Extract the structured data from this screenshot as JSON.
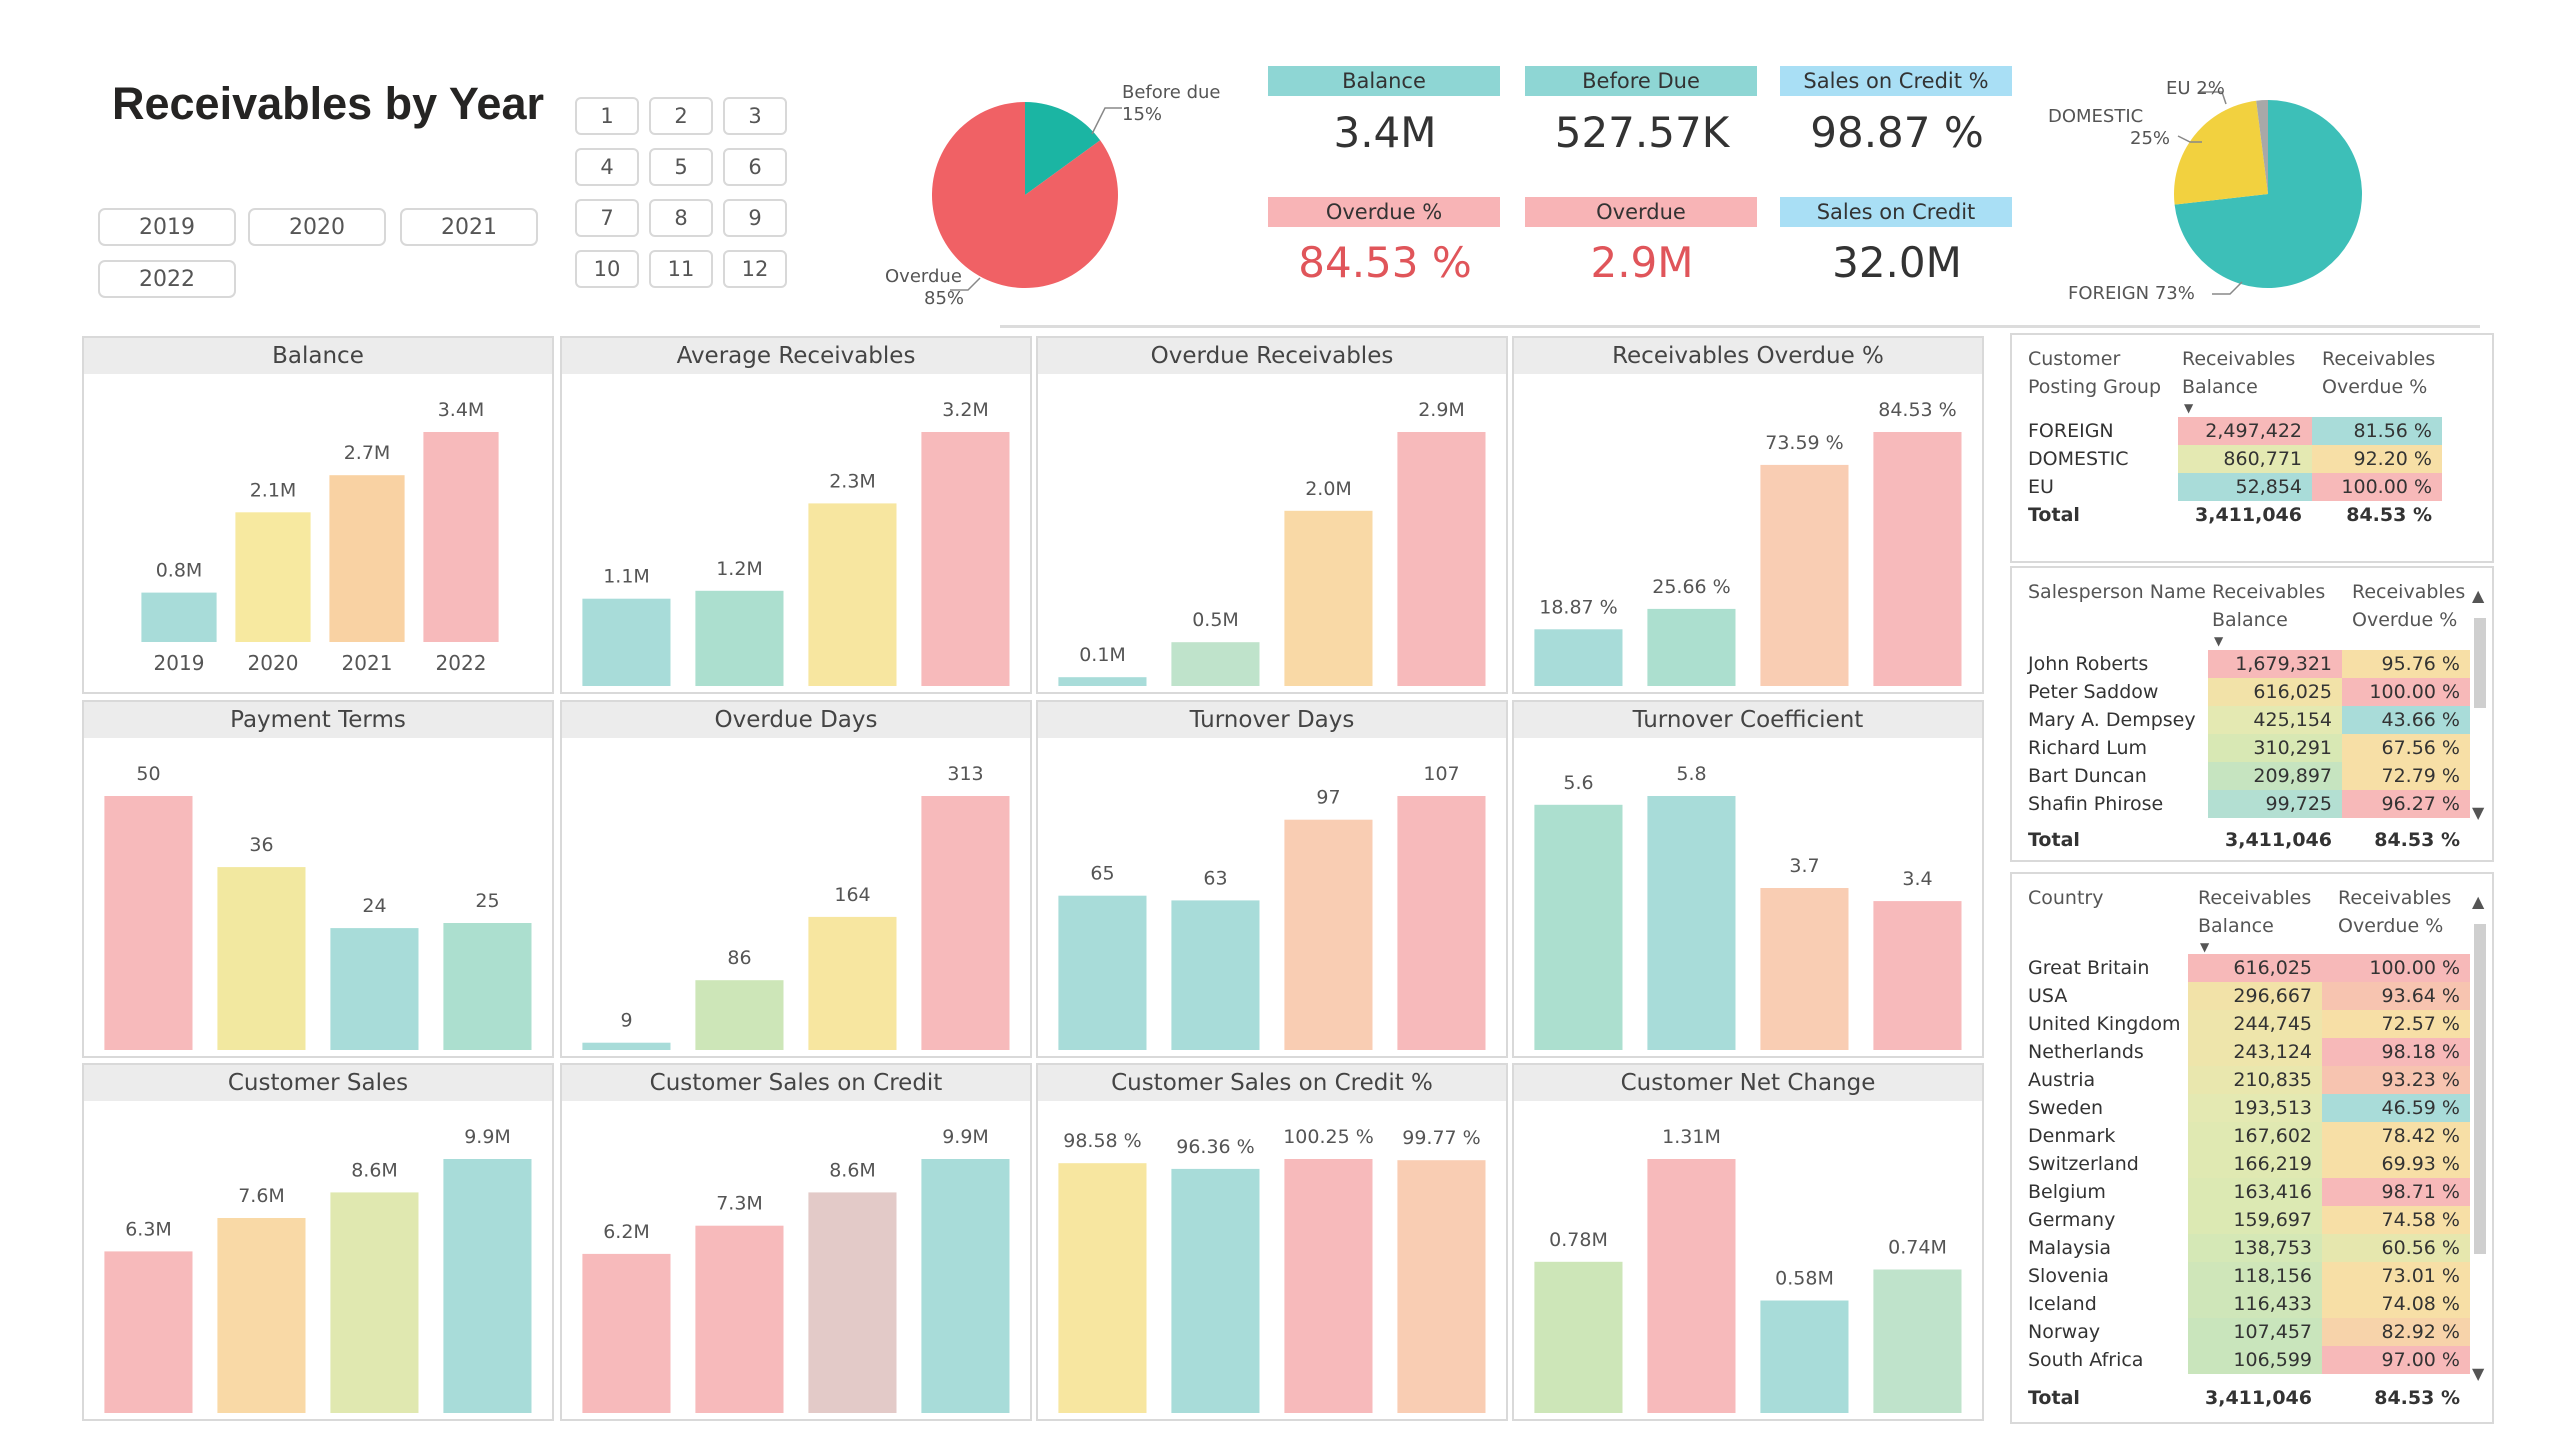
{
  "header": {
    "title": "Receivables by Year",
    "years": [
      "2019",
      "2020",
      "2021",
      "2022"
    ],
    "months": [
      "1",
      "2",
      "3",
      "4",
      "5",
      "6",
      "7",
      "8",
      "9",
      "10",
      "11",
      "12"
    ]
  },
  "due_pie": {
    "before_label": "Before due",
    "before_pct": "15%",
    "overdue_label": "Overdue",
    "overdue_pct": "85%",
    "values": [
      15,
      85
    ],
    "colors": [
      "#1bb5a3",
      "#f06165"
    ]
  },
  "kpis": {
    "balance_label": "Balance",
    "balance_value": "3.4M",
    "before_due_label": "Before Due",
    "before_due_value": "527.57K",
    "sales_credit_pct_label": "Sales on Credit %",
    "sales_credit_pct_value": "98.87 %",
    "overdue_pct_label": "Overdue %",
    "overdue_pct_value": "84.53 %",
    "overdue_label": "Overdue",
    "overdue_value": "2.9M",
    "sales_credit_label": "Sales on Credit",
    "sales_credit_value": "32.0M",
    "colors": {
      "teal": "#8ed6d4",
      "pink": "#f8b4b6",
      "blue": "#a9dff5"
    }
  },
  "group_pie": {
    "eu_label": "EU 2%",
    "domestic_label": "DOMESTIC",
    "domestic_pct": "25%",
    "foreign_label": "FOREIGN 73%",
    "values": [
      73,
      25,
      2
    ],
    "colors": [
      "#3dbfb8",
      "#f2d13f",
      "#a8a8a8"
    ]
  },
  "charts": [
    {
      "title": "Balance",
      "categories": [
        "2019",
        "2020",
        "2021",
        "2022"
      ],
      "values": [
        0.8,
        2.1,
        2.7,
        3.4
      ],
      "labels": [
        "0.8M",
        "2.1M",
        "2.7M",
        "3.4M"
      ],
      "colors": [
        "#a8dcd9",
        "#f7e9a0",
        "#f9d2a3",
        "#f7babb"
      ],
      "show_x": true
    },
    {
      "title": "Average Receivables",
      "values": [
        1.1,
        1.2,
        2.3,
        3.2
      ],
      "labels": [
        "1.1M",
        "1.2M",
        "2.3M",
        "3.2M"
      ],
      "colors": [
        "#a8dcd9",
        "#acdfcf",
        "#f7e6a0",
        "#f7babb"
      ],
      "show_x": false
    },
    {
      "title": "Overdue Receivables",
      "values": [
        0.1,
        0.5,
        2.0,
        2.9
      ],
      "labels": [
        "0.1M",
        "0.5M",
        "2.0M",
        "2.9M"
      ],
      "colors": [
        "#a8dcd9",
        "#bfe3cb",
        "#f9d9a6",
        "#f7babb"
      ],
      "show_x": false
    },
    {
      "title": "Receivables Overdue %",
      "values": [
        18.87,
        25.66,
        73.59,
        84.53
      ],
      "labels": [
        "18.87 %",
        "25.66 %",
        "73.59 %",
        "84.53 %"
      ],
      "colors": [
        "#a8dcd9",
        "#acdfcf",
        "#f9cdb3",
        "#f7babb"
      ],
      "show_x": false
    },
    {
      "title": "Payment Terms",
      "values": [
        50,
        36,
        24,
        25
      ],
      "labels": [
        "50",
        "36",
        "24",
        "25"
      ],
      "colors": [
        "#f7babb",
        "#f2e8a0",
        "#a8dcd9",
        "#acdfcf"
      ],
      "show_x": false
    },
    {
      "title": "Overdue Days",
      "values": [
        9,
        86,
        164,
        313
      ],
      "labels": [
        "9",
        "86",
        "164",
        "313"
      ],
      "colors": [
        "#a8dcd9",
        "#cde6b8",
        "#f7e6a0",
        "#f7babb"
      ],
      "show_x": false
    },
    {
      "title": "Turnover Days",
      "values": [
        65,
        63,
        97,
        107
      ],
      "labels": [
        "65",
        "63",
        "97",
        "107"
      ],
      "colors": [
        "#a8dcd9",
        "#a8dcd9",
        "#f9cdb3",
        "#f7babb"
      ],
      "show_x": false
    },
    {
      "title": "Turnover Coefficient",
      "values": [
        5.6,
        5.8,
        3.7,
        3.4
      ],
      "labels": [
        "5.6",
        "5.8",
        "3.7",
        "3.4"
      ],
      "colors": [
        "#acdfcf",
        "#a8dcd9",
        "#f9cdb3",
        "#f7babb"
      ],
      "show_x": false
    },
    {
      "title": "Customer Sales",
      "values": [
        6.3,
        7.6,
        8.6,
        9.9
      ],
      "labels": [
        "6.3M",
        "7.6M",
        "8.6M",
        "9.9M"
      ],
      "colors": [
        "#f7babb",
        "#f9d9a6",
        "#e0e8b0",
        "#a8dcd9"
      ],
      "show_x": false
    },
    {
      "title": "Customer Sales on Credit",
      "values": [
        6.2,
        7.3,
        8.6,
        9.9
      ],
      "labels": [
        "6.2M",
        "7.3M",
        "8.6M",
        "9.9M"
      ],
      "colors": [
        "#f7babb",
        "#f7babb",
        "#e3cac8",
        "#a8dcd9"
      ],
      "show_x": false
    },
    {
      "title": "Customer Sales on Credit %",
      "values": [
        98.58,
        96.36,
        100.25,
        99.77
      ],
      "labels": [
        "98.58 %",
        "96.36 %",
        "100.25 %",
        "99.77 %"
      ],
      "colors": [
        "#f7e6a0",
        "#a8dcd9",
        "#f7babb",
        "#f9cdb3"
      ],
      "show_x": false
    },
    {
      "title": "Customer Net Change",
      "values": [
        0.78,
        1.31,
        0.58,
        0.74
      ],
      "labels": [
        "0.78M",
        "1.31M",
        "0.58M",
        "0.74M"
      ],
      "colors": [
        "#cde6b8",
        "#f7babb",
        "#a8dcd9",
        "#bfe3cb"
      ],
      "show_x": false
    }
  ],
  "table_group": {
    "headers": [
      "Customer Posting Group",
      "Receivables Balance",
      "Receivables Overdue %"
    ],
    "rows": [
      {
        "name": "FOREIGN",
        "balance": "2,497,422",
        "overdue": "81.56 %",
        "bal_color": "#f7b9b9",
        "ov_color": "#a9dcd9"
      },
      {
        "name": "DOMESTIC",
        "balance": "860,771",
        "overdue": "92.20 %",
        "bal_color": "#e4e9b2",
        "ov_color": "#f7dfa6"
      },
      {
        "name": "EU",
        "balance": "52,854",
        "overdue": "100.00 %",
        "bal_color": "#a9dcd9",
        "ov_color": "#f7b9b9"
      }
    ],
    "total_label": "Total",
    "total_balance": "3,411,046",
    "total_overdue": "84.53 %"
  },
  "table_sales": {
    "headers": [
      "Salesperson Name",
      "Receivables Balance",
      "Receivables Overdue %"
    ],
    "rows": [
      {
        "name": "John Roberts",
        "balance": "1,679,321",
        "overdue": "95.76 %",
        "bal_color": "#f7b9b9",
        "ov_color": "#f7dfa6"
      },
      {
        "name": "Peter Saddow",
        "balance": "616,025",
        "overdue": "100.00 %",
        "bal_color": "#f2e2a8",
        "ov_color": "#f7b9b9"
      },
      {
        "name": "Mary A. Dempsey",
        "balance": "425,154",
        "overdue": "43.66 %",
        "bal_color": "#e4e9b2",
        "ov_color": "#a9dcd9"
      },
      {
        "name": "Richard Lum",
        "balance": "310,291",
        "overdue": "67.56 %",
        "bal_color": "#d8e8b4",
        "ov_color": "#f7dfa6"
      },
      {
        "name": "Bart Duncan",
        "balance": "209,897",
        "overdue": "72.79 %",
        "bal_color": "#c6e4c0",
        "ov_color": "#f7dfa6"
      },
      {
        "name": "Shafin Phirose",
        "balance": "99,725",
        "overdue": "96.27 %",
        "bal_color": "#b3dfd2",
        "ov_color": "#f7b9b9"
      }
    ],
    "total_label": "Total",
    "total_balance": "3,411,046",
    "total_overdue": "84.53 %"
  },
  "table_country": {
    "headers": [
      "Country",
      "Receivables Balance",
      "Receivables Overdue %"
    ],
    "rows": [
      {
        "name": "Great Britain",
        "balance": "616,025",
        "overdue": "100.00 %",
        "bal_color": "#f7b9b9",
        "ov_color": "#f7b9b9"
      },
      {
        "name": "USA",
        "balance": "296,667",
        "overdue": "93.64 %",
        "bal_color": "#f2e2a8",
        "ov_color": "#f7c4b0"
      },
      {
        "name": "United Kingdom",
        "balance": "244,745",
        "overdue": "72.57 %",
        "bal_color": "#eee5ab",
        "ov_color": "#f7dfa6"
      },
      {
        "name": "Netherlands",
        "balance": "243,124",
        "overdue": "98.18 %",
        "bal_color": "#eee5ab",
        "ov_color": "#f7b9b9"
      },
      {
        "name": "Austria",
        "balance": "210,835",
        "overdue": "93.23 %",
        "bal_color": "#e9e7ae",
        "ov_color": "#f7c4b0"
      },
      {
        "name": "Sweden",
        "balance": "193,513",
        "overdue": "46.59 %",
        "bal_color": "#e4e9b2",
        "ov_color": "#a9dcd9"
      },
      {
        "name": "Denmark",
        "balance": "167,602",
        "overdue": "78.42 %",
        "bal_color": "#e0e9b2",
        "ov_color": "#f7dfa6"
      },
      {
        "name": "Switzerland",
        "balance": "166,219",
        "overdue": "69.93 %",
        "bal_color": "#e0e9b2",
        "ov_color": "#f7dfa6"
      },
      {
        "name": "Belgium",
        "balance": "163,416",
        "overdue": "98.71 %",
        "bal_color": "#dce9b3",
        "ov_color": "#f7b9b9"
      },
      {
        "name": "Germany",
        "balance": "159,697",
        "overdue": "74.58 %",
        "bal_color": "#dce9b3",
        "ov_color": "#f7dfa6"
      },
      {
        "name": "Malaysia",
        "balance": "138,753",
        "overdue": "60.56 %",
        "bal_color": "#d5e8b6",
        "ov_color": "#e6e7ae"
      },
      {
        "name": "Slovenia",
        "balance": "118,156",
        "overdue": "73.01 %",
        "bal_color": "#cfe6b9",
        "ov_color": "#f7dfa6"
      },
      {
        "name": "Iceland",
        "balance": "116,433",
        "overdue": "74.08 %",
        "bal_color": "#cfe6b9",
        "ov_color": "#f7dfa6"
      },
      {
        "name": "Norway",
        "balance": "107,457",
        "overdue": "82.92 %",
        "bal_color": "#c9e5bc",
        "ov_color": "#f7d3aa"
      },
      {
        "name": "South Africa",
        "balance": "106,599",
        "overdue": "97.00 %",
        "bal_color": "#c9e5bc",
        "ov_color": "#f7b9b9"
      }
    ],
    "total_label": "Total",
    "total_balance": "3,411,046",
    "total_overdue": "84.53 %"
  },
  "chart_data": [
    {
      "type": "pie",
      "categories": [
        "Before due",
        "Overdue"
      ],
      "values": [
        15,
        85
      ]
    },
    {
      "type": "pie",
      "categories": [
        "FOREIGN",
        "DOMESTIC",
        "EU"
      ],
      "values": [
        73,
        25,
        2
      ]
    },
    {
      "type": "bar",
      "title": "Balance",
      "categories": [
        "2019",
        "2020",
        "2021",
        "2022"
      ],
      "values": [
        0.8,
        2.1,
        2.7,
        3.4
      ]
    },
    {
      "type": "bar",
      "title": "Average Receivables",
      "values": [
        1.1,
        1.2,
        2.3,
        3.2
      ]
    },
    {
      "type": "bar",
      "title": "Overdue Receivables",
      "values": [
        0.1,
        0.5,
        2.0,
        2.9
      ]
    },
    {
      "type": "bar",
      "title": "Receivables Overdue %",
      "values": [
        18.87,
        25.66,
        73.59,
        84.53
      ]
    },
    {
      "type": "bar",
      "title": "Payment Terms",
      "values": [
        50,
        36,
        24,
        25
      ]
    },
    {
      "type": "bar",
      "title": "Overdue Days",
      "values": [
        9,
        86,
        164,
        313
      ]
    },
    {
      "type": "bar",
      "title": "Turnover Days",
      "values": [
        65,
        63,
        97,
        107
      ]
    },
    {
      "type": "bar",
      "title": "Turnover Coefficient",
      "values": [
        5.6,
        5.8,
        3.7,
        3.4
      ]
    },
    {
      "type": "bar",
      "title": "Customer Sales",
      "values": [
        6.3,
        7.6,
        8.6,
        9.9
      ]
    },
    {
      "type": "bar",
      "title": "Customer Sales on Credit",
      "values": [
        6.2,
        7.3,
        8.6,
        9.9
      ]
    },
    {
      "type": "bar",
      "title": "Customer Sales on Credit %",
      "values": [
        98.58,
        96.36,
        100.25,
        99.77
      ]
    },
    {
      "type": "bar",
      "title": "Customer Net Change",
      "values": [
        0.78,
        1.31,
        0.58,
        0.74
      ]
    }
  ]
}
